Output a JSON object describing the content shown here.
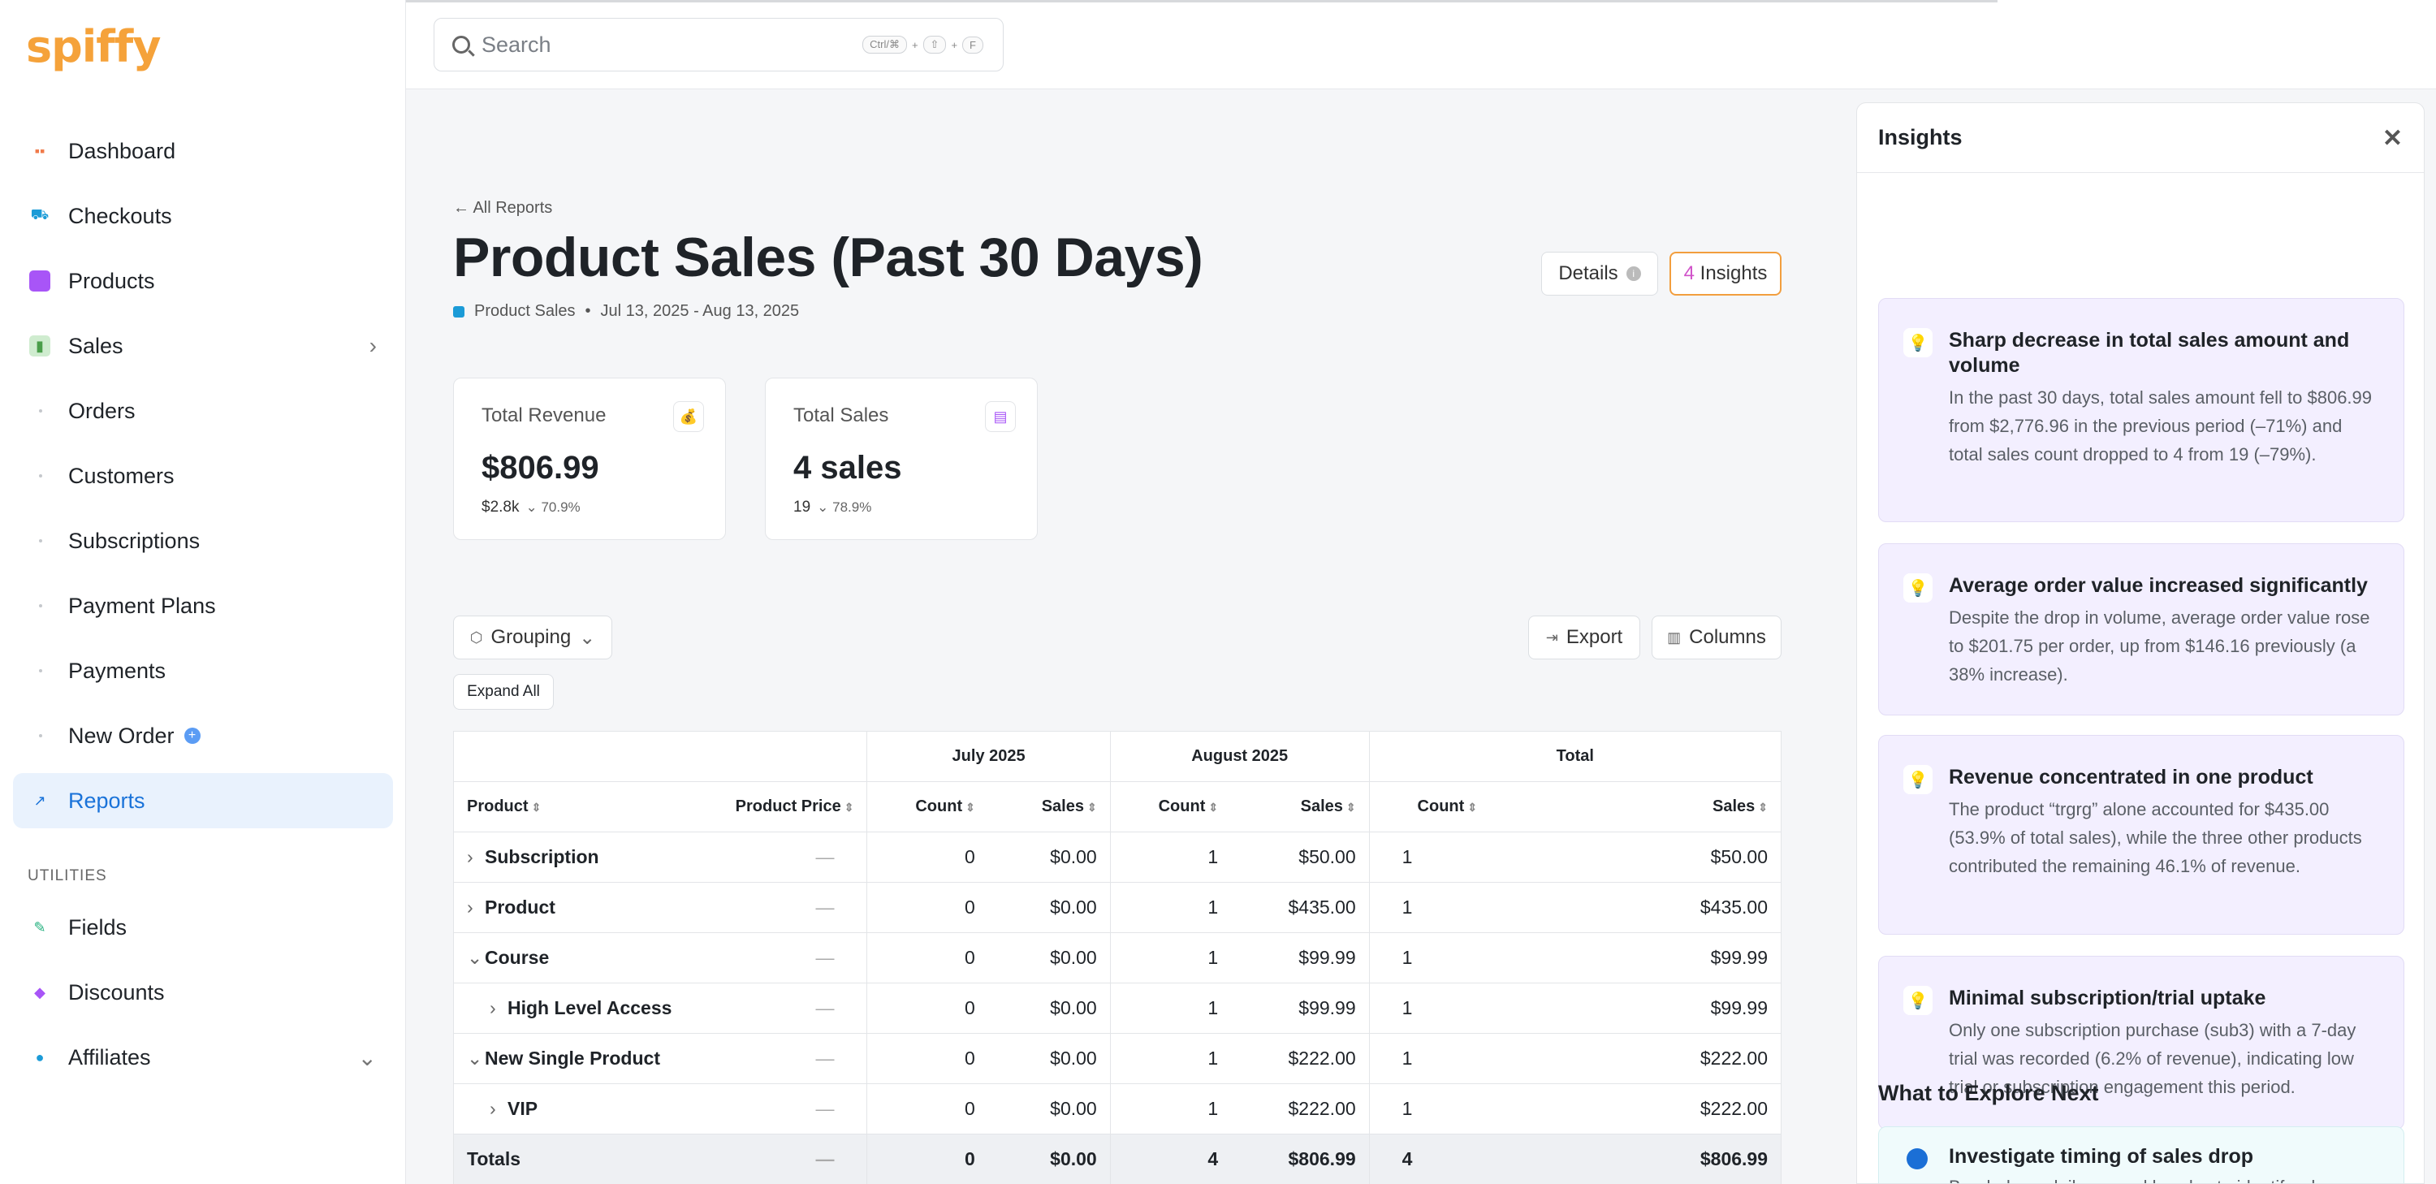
{
  "app": {
    "logo": "spiffy"
  },
  "sidebar": {
    "items": [
      {
        "label": "Dashboard",
        "color": "#f07a4a"
      },
      {
        "label": "Checkouts",
        "color": "#1b9bd7"
      },
      {
        "label": "Products",
        "color": "#a855f7"
      },
      {
        "label": "Sales",
        "color": "#6bc46b"
      }
    ],
    "sales_sub": [
      "Orders",
      "Customers",
      "Subscriptions",
      "Payment Plans",
      "Payments",
      "New Order"
    ],
    "reports": "Reports",
    "utilities_label": "UTILITIES",
    "utilities": [
      "Fields",
      "Discounts",
      "Affiliates"
    ]
  },
  "search": {
    "placeholder": "Search",
    "shortcut": [
      "Ctrl/⌘",
      "⇧",
      "F"
    ]
  },
  "page": {
    "back_link": "← All Reports",
    "title": "Product Sales (Past 30 Days)",
    "report_type": "Product Sales",
    "date_range": "Jul 13, 2025 - Aug 13, 2025",
    "details_button": "Details",
    "insights_count": "4",
    "insights_label": "Insights"
  },
  "cards": [
    {
      "label": "Total Revenue",
      "value": "$806.99",
      "prev": "$2.8k",
      "change": "⌄ 70.9%"
    },
    {
      "label": "Total Sales",
      "value": "4 sales",
      "prev": "19",
      "change": "⌄ 78.9%"
    }
  ],
  "toolbar": {
    "grouping": "Grouping",
    "export": "Export",
    "columns": "Columns",
    "expand_all": "Expand All"
  },
  "table": {
    "groups": [
      "July 2025",
      "August 2025",
      "Total"
    ],
    "headers": [
      "Product",
      "Product Price",
      "Count",
      "Sales",
      "Count",
      "Sales",
      "Count",
      "Sales"
    ],
    "rows": [
      {
        "name": "Subscription",
        "indent": 0,
        "exp": "›",
        "price": "—",
        "c1": "0",
        "s1": "$0.00",
        "c2": "1",
        "s2": "$50.00",
        "ct": "1",
        "st": "$50.00"
      },
      {
        "name": "Product",
        "indent": 0,
        "exp": "›",
        "price": "—",
        "c1": "0",
        "s1": "$0.00",
        "c2": "1",
        "s2": "$435.00",
        "ct": "1",
        "st": "$435.00"
      },
      {
        "name": "Course",
        "indent": 0,
        "exp": "⌄",
        "price": "—",
        "c1": "0",
        "s1": "$0.00",
        "c2": "1",
        "s2": "$99.99",
        "ct": "1",
        "st": "$99.99"
      },
      {
        "name": "High Level Access",
        "indent": 1,
        "exp": "›",
        "price": "—",
        "c1": "0",
        "s1": "$0.00",
        "c2": "1",
        "s2": "$99.99",
        "ct": "1",
        "st": "$99.99"
      },
      {
        "name": "New Single Product",
        "indent": 0,
        "exp": "⌄",
        "price": "—",
        "c1": "0",
        "s1": "$0.00",
        "c2": "1",
        "s2": "$222.00",
        "ct": "1",
        "st": "$222.00"
      },
      {
        "name": "VIP",
        "indent": 1,
        "exp": "›",
        "price": "—",
        "c1": "0",
        "s1": "$0.00",
        "c2": "1",
        "s2": "$222.00",
        "ct": "1",
        "st": "$222.00"
      }
    ],
    "totals": {
      "name": "Totals",
      "price": "—",
      "c1": "0",
      "s1": "$0.00",
      "c2": "4",
      "s2": "$806.99",
      "ct": "4",
      "st": "$806.99"
    }
  },
  "insights": {
    "title": "Insights",
    "items": [
      {
        "title": "Sharp decrease in total sales amount and volume",
        "body": "In the past 30 days, total sales amount fell to $806.99 from $2,776.96 in the previous period (–71%) and total sales count dropped to 4 from 19 (–79%)."
      },
      {
        "title": "Average order value increased significantly",
        "body": "Despite the drop in volume, average order value rose to $201.75 per order, up from $146.16 previously (a 38% increase)."
      },
      {
        "title": "Revenue concentrated in one product",
        "body": "The product “trgrg” alone accounted for $435.00 (53.9% of total sales), while the three other products contributed the remaining 46.1% of revenue."
      },
      {
        "title": "Minimal subscription/trial uptake",
        "body": "Only one subscription purchase (sub3) with a 7-day trial was recorded (6.2% of revenue), indicating low trial or subscription engagement this period."
      }
    ],
    "explore_title": "What to Explore Next",
    "explore_item_title": "Investigate timing of sales drop",
    "explore_item_body": "Break down daily or weekly sales to identify when"
  }
}
